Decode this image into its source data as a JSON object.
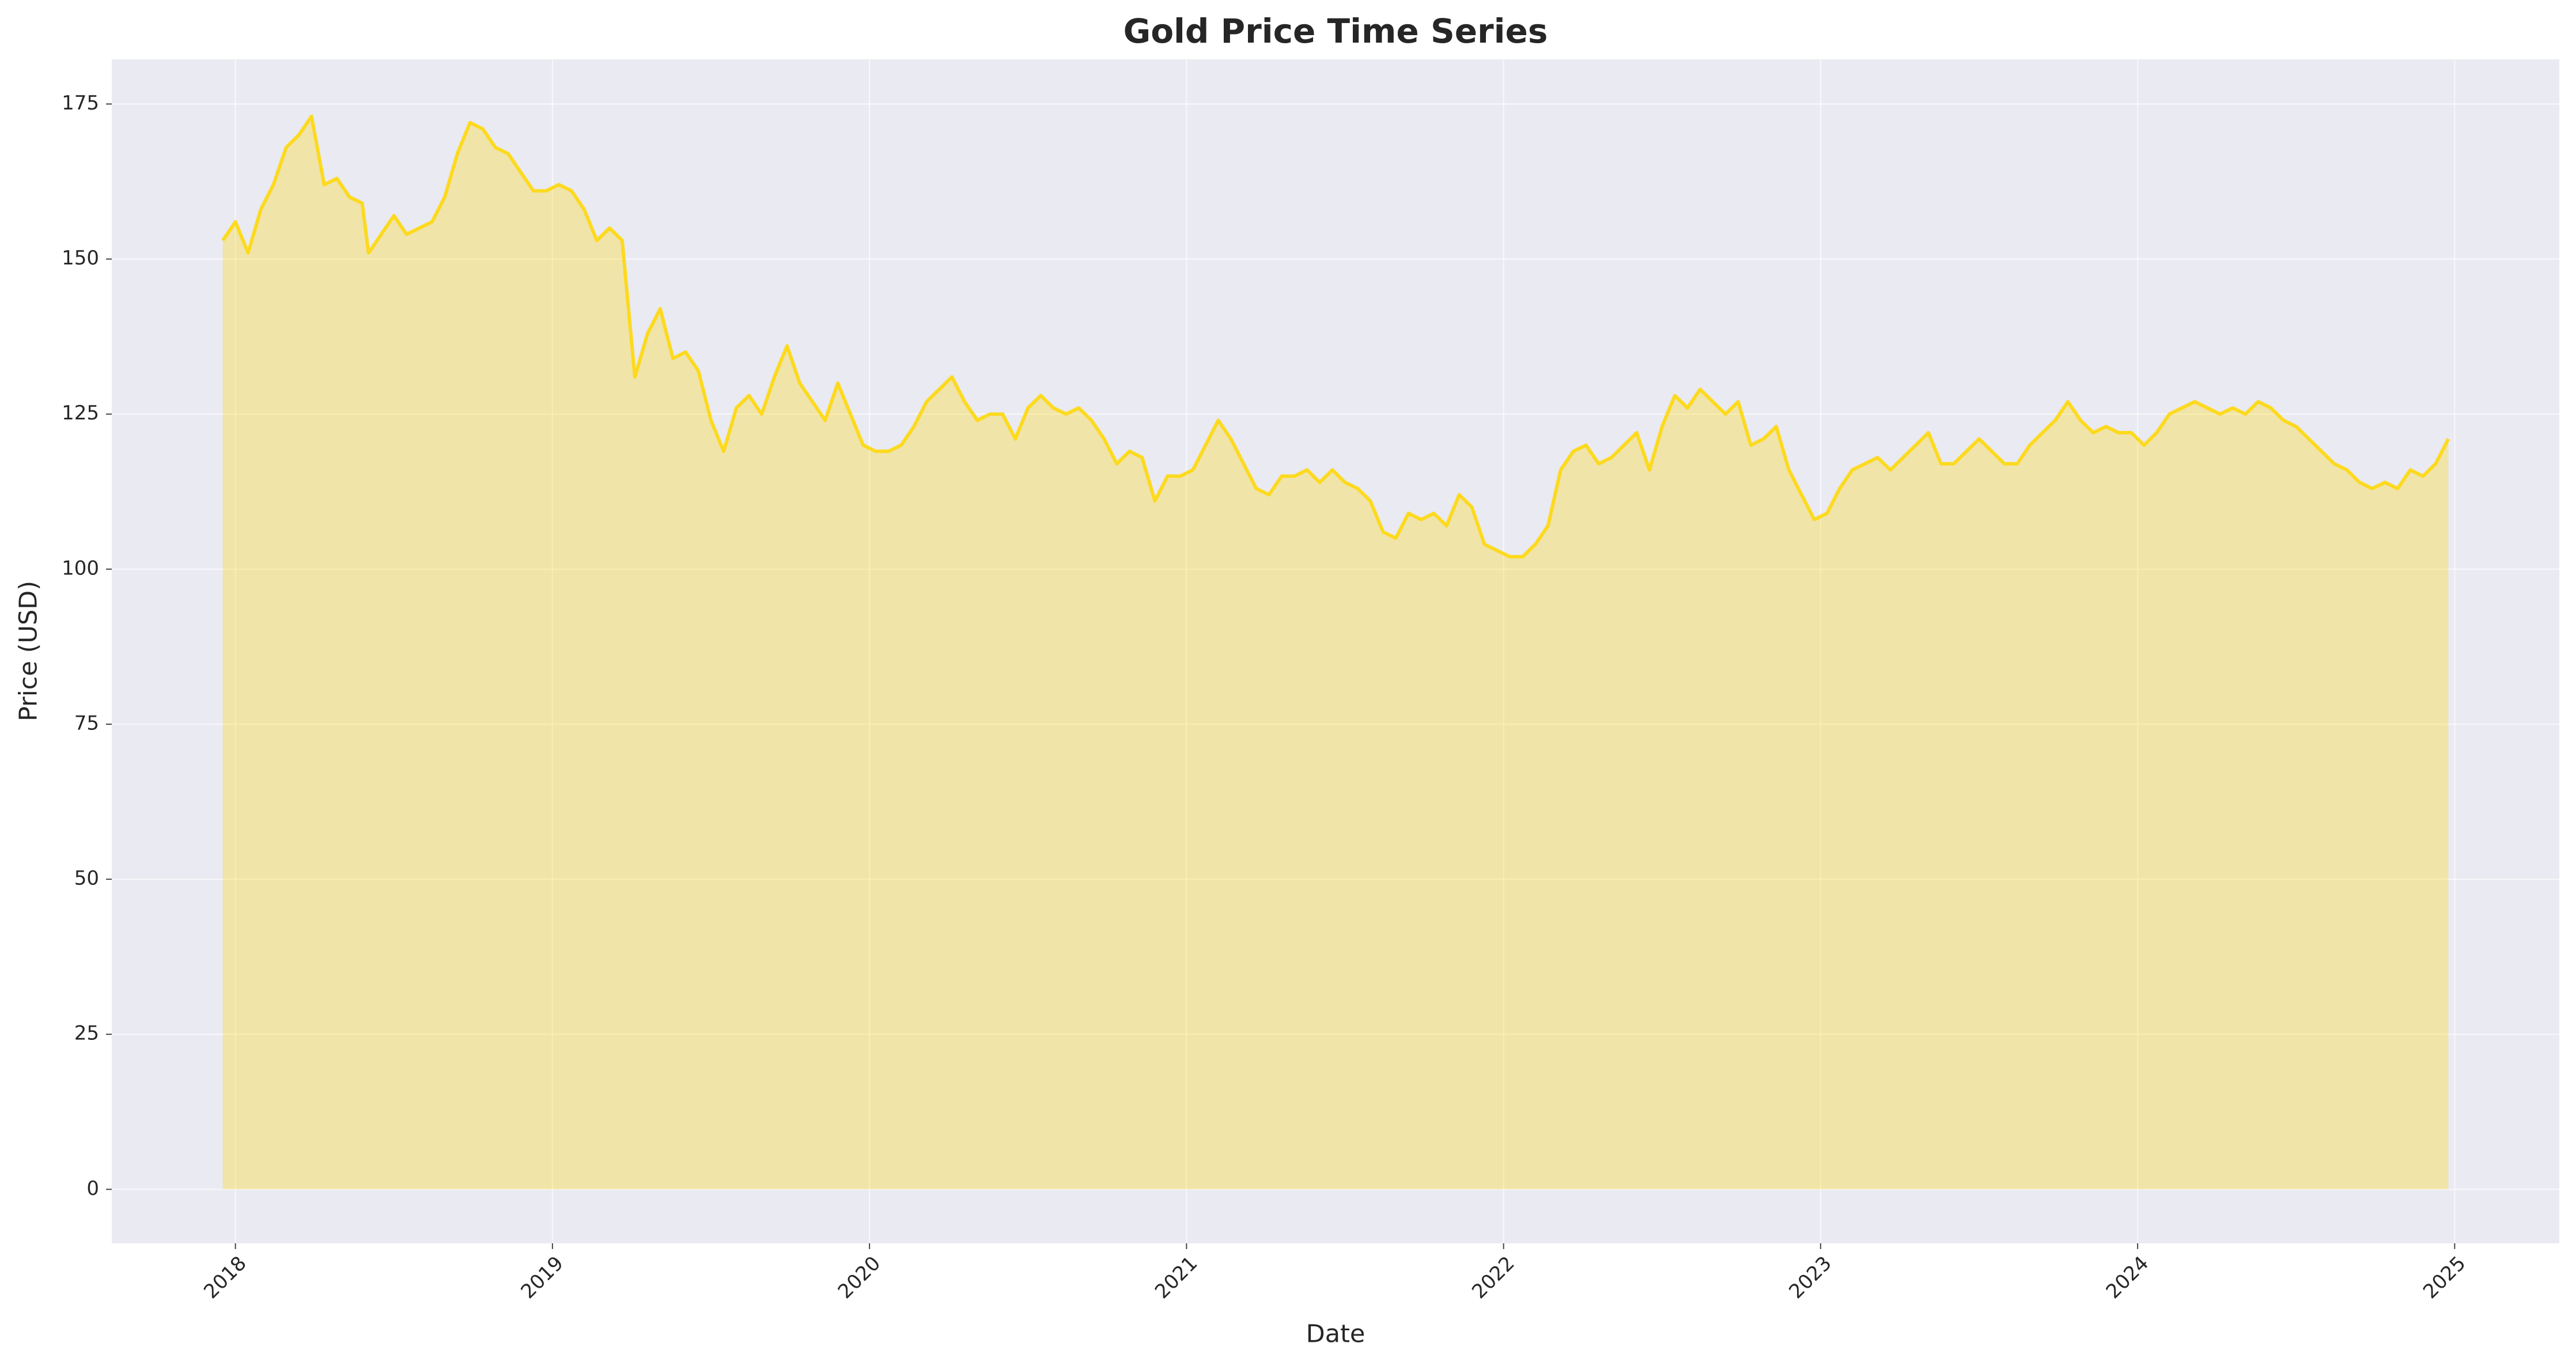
{
  "chart_data": {
    "type": "area",
    "title": "Gold Price Time Series",
    "x_label": "Date",
    "y_label": "Price (USD)",
    "color": "#FFD700",
    "grid": true,
    "xlim": [
      2017.61,
      2025.33
    ],
    "xticks": [
      2018,
      2019,
      2020,
      2021,
      2022,
      2023,
      2024,
      2025
    ],
    "ylim": [
      -8.7,
      182.2
    ],
    "yticks": [
      0,
      25,
      50,
      75,
      100,
      125,
      150,
      175
    ],
    "x": [
      2017.96,
      2018.0,
      2018.04,
      2018.08,
      2018.12,
      2018.16,
      2018.2,
      2018.24,
      2018.28,
      2018.32,
      2018.36,
      2018.4,
      2018.42,
      2018.46,
      2018.5,
      2018.54,
      2018.58,
      2018.62,
      2018.66,
      2018.7,
      2018.74,
      2018.78,
      2018.82,
      2018.86,
      2018.9,
      2018.94,
      2018.98,
      2019.02,
      2019.06,
      2019.1,
      2019.14,
      2019.18,
      2019.22,
      2019.26,
      2019.3,
      2019.34,
      2019.38,
      2019.42,
      2019.46,
      2019.5,
      2019.54,
      2019.58,
      2019.62,
      2019.66,
      2019.7,
      2019.74,
      2019.78,
      2019.82,
      2019.86,
      2019.9,
      2019.94,
      2019.98,
      2020.02,
      2020.06,
      2020.1,
      2020.14,
      2020.18,
      2020.22,
      2020.26,
      2020.3,
      2020.34,
      2020.38,
      2020.42,
      2020.46,
      2020.5,
      2020.54,
      2020.58,
      2020.62,
      2020.66,
      2020.7,
      2020.74,
      2020.78,
      2020.82,
      2020.86,
      2020.9,
      2020.94,
      2020.98,
      2021.02,
      2021.06,
      2021.1,
      2021.14,
      2021.18,
      2021.22,
      2021.26,
      2021.3,
      2021.34,
      2021.38,
      2021.42,
      2021.46,
      2021.5,
      2021.54,
      2021.58,
      2021.62,
      2021.66,
      2021.7,
      2021.74,
      2021.78,
      2021.82,
      2021.86,
      2021.9,
      2021.94,
      2021.98,
      2022.02,
      2022.06,
      2022.1,
      2022.14,
      2022.18,
      2022.22,
      2022.26,
      2022.3,
      2022.34,
      2022.38,
      2022.42,
      2022.46,
      2022.5,
      2022.54,
      2022.58,
      2022.62,
      2022.66,
      2022.7,
      2022.74,
      2022.78,
      2022.82,
      2022.86,
      2022.9,
      2022.94,
      2022.98,
      2023.02,
      2023.06,
      2023.1,
      2023.14,
      2023.18,
      2023.22,
      2023.26,
      2023.3,
      2023.34,
      2023.38,
      2023.42,
      2023.46,
      2023.5,
      2023.54,
      2023.58,
      2023.62,
      2023.66,
      2023.7,
      2023.74,
      2023.78,
      2023.82,
      2023.86,
      2023.9,
      2023.94,
      2023.98,
      2024.02,
      2024.06,
      2024.1,
      2024.14,
      2024.18,
      2024.22,
      2024.26,
      2024.3,
      2024.34,
      2024.38,
      2024.42,
      2024.46,
      2024.5,
      2024.54,
      2024.58,
      2024.62,
      2024.66,
      2024.7,
      2024.74,
      2024.78,
      2024.82,
      2024.86,
      2024.9,
      2024.94,
      2024.98
    ],
    "values": [
      153,
      156,
      151,
      158,
      162,
      168,
      170,
      173,
      162,
      163,
      160,
      159,
      151,
      154,
      157,
      154,
      155,
      156,
      160,
      167,
      172,
      171,
      168,
      167,
      164,
      161,
      161,
      162,
      161,
      158,
      153,
      155,
      153,
      131,
      138,
      142,
      134,
      135,
      132,
      124,
      119,
      126,
      128,
      125,
      131,
      136,
      130,
      127,
      124,
      130,
      125,
      120,
      119,
      119,
      120,
      123,
      127,
      129,
      131,
      127,
      124,
      125,
      125,
      121,
      126,
      128,
      126,
      125,
      126,
      124,
      121,
      117,
      119,
      118,
      111,
      115,
      115,
      116,
      120,
      124,
      121,
      117,
      113,
      112,
      115,
      115,
      116,
      114,
      116,
      114,
      113,
      111,
      106,
      105,
      109,
      108,
      109,
      107,
      112,
      110,
      104,
      103,
      102,
      102,
      104,
      107,
      116,
      119,
      120,
      117,
      118,
      120,
      122,
      116,
      123,
      128,
      126,
      129,
      127,
      125,
      127,
      120,
      121,
      123,
      116,
      112,
      108,
      109,
      113,
      116,
      117,
      118,
      116,
      118,
      120,
      122,
      117,
      117,
      119,
      121,
      119,
      117,
      117,
      120,
      122,
      124,
      127,
      124,
      122,
      123,
      122,
      122,
      120,
      122,
      125,
      126,
      127,
      126,
      125,
      126,
      125,
      127,
      126,
      124,
      123,
      121,
      119,
      117,
      116,
      114,
      113,
      114,
      113,
      116,
      115,
      117,
      121
    ]
  }
}
